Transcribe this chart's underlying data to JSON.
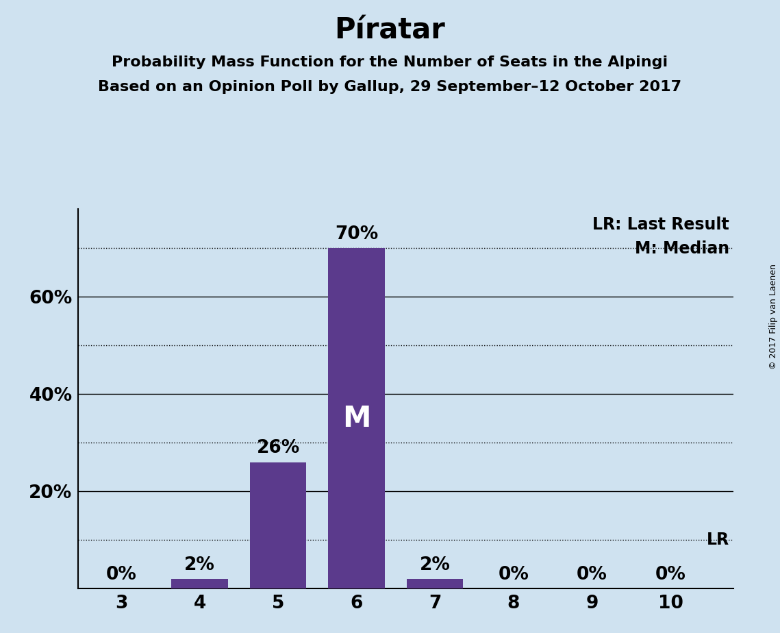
{
  "title": "Píratar",
  "subtitle1": "Probability Mass Function for the Number of Seats in the Alpingi",
  "subtitle2": "Based on an Opinion Poll by Gallup, 29 September–12 October 2017",
  "copyright": "© 2017 Filip van Laenen",
  "categories": [
    3,
    4,
    5,
    6,
    7,
    8,
    9,
    10
  ],
  "values": [
    0,
    2,
    26,
    70,
    2,
    0,
    0,
    0
  ],
  "bar_color": "#5b3a8c",
  "background_color": "#cfe2f0",
  "median_seat": 6,
  "lr_value": 10,
  "yticks_solid": [
    20,
    40,
    60
  ],
  "yticks_dotted": [
    10,
    30,
    50,
    70
  ],
  "ylim": [
    0,
    78
  ],
  "legend_lr": "LR: Last Result",
  "legend_m": "M: Median",
  "title_fontsize": 30,
  "subtitle_fontsize": 16,
  "bar_label_fontsize": 19,
  "median_label_fontsize": 30,
  "legend_fontsize": 17,
  "tick_fontsize": 19,
  "copyright_fontsize": 9
}
